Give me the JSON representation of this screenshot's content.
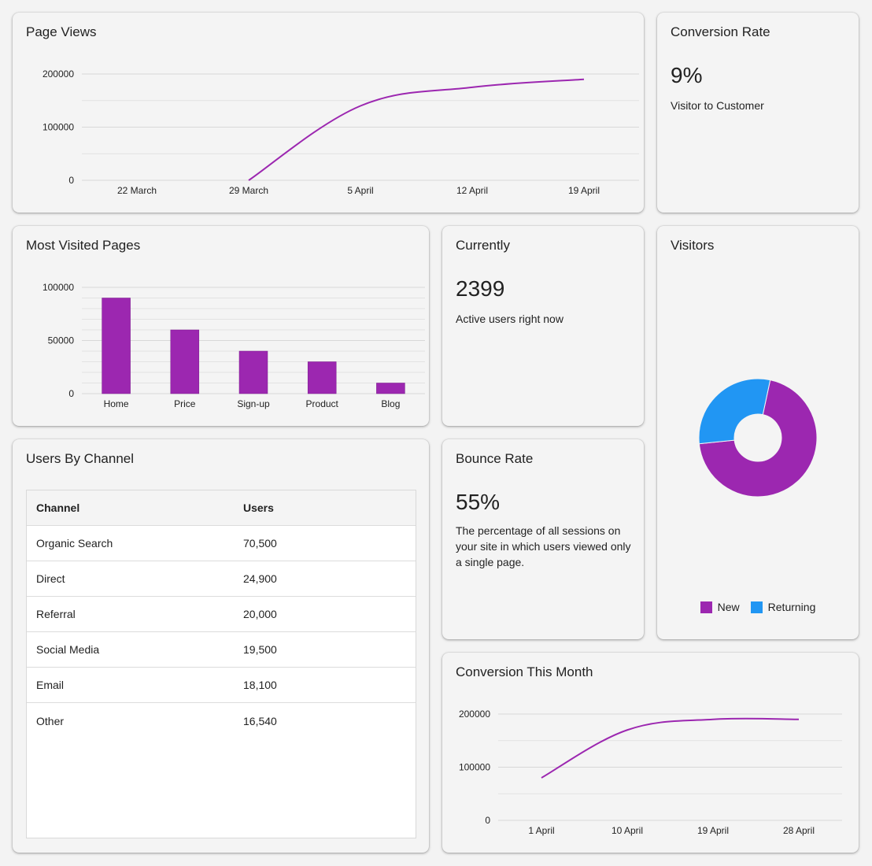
{
  "colors": {
    "primary": "#9c27b0",
    "secondary": "#2196f3"
  },
  "page_views": {
    "title": "Page Views"
  },
  "conversion_rate": {
    "title": "Conversion Rate",
    "value": "9%",
    "caption": "Visitor to Customer"
  },
  "most_visited": {
    "title": "Most Visited Pages"
  },
  "currently": {
    "title": "Currently",
    "value": "2399",
    "caption": "Active users right now"
  },
  "visitors": {
    "title": "Visitors"
  },
  "users_by_channel": {
    "title": "Users By Channel",
    "headers": [
      "Channel",
      "Users"
    ],
    "rows": [
      [
        "Organic Search",
        "70,500"
      ],
      [
        "Direct",
        "24,900"
      ],
      [
        "Referral",
        "20,000"
      ],
      [
        "Social Media",
        "19,500"
      ],
      [
        "Email",
        "18,100"
      ],
      [
        "Other",
        "16,540"
      ]
    ]
  },
  "bounce_rate": {
    "title": "Bounce Rate",
    "value": "55%",
    "caption": "The percentage of all sessions on your site in which users viewed only a single page."
  },
  "conversion_month": {
    "title": "Conversion This Month"
  },
  "chart_data": [
    {
      "id": "page_views",
      "type": "line",
      "x": [
        "22 March",
        "29 March",
        "5 April",
        "12 April",
        "19 April"
      ],
      "series": [
        {
          "values": [
            null,
            0,
            140000,
            175000,
            190000
          ]
        }
      ],
      "yticks": [
        "0",
        "100000",
        "200000"
      ],
      "ylim": [
        0,
        200000
      ],
      "grid": true
    },
    {
      "id": "most_visited",
      "type": "bar",
      "categories": [
        "Home",
        "Price",
        "Sign-up",
        "Product",
        "Blog"
      ],
      "values": [
        90000,
        60000,
        40000,
        30000,
        10000
      ],
      "yticks": [
        "0",
        "50000",
        "100000"
      ],
      "ylim": [
        0,
        100000
      ],
      "grid": true
    },
    {
      "id": "visitors",
      "type": "pie",
      "labels": [
        "New",
        "Returning"
      ],
      "values": [
        70,
        30
      ],
      "donut": true,
      "legend": "bottom"
    },
    {
      "id": "conversion_month",
      "type": "line",
      "x": [
        "1 April",
        "10 April",
        "19 April",
        "28 April"
      ],
      "series": [
        {
          "values": [
            80000,
            170000,
            190000,
            190000
          ]
        }
      ],
      "yticks": [
        "0",
        "100000",
        "200000"
      ],
      "ylim": [
        0,
        200000
      ],
      "grid": true
    }
  ]
}
